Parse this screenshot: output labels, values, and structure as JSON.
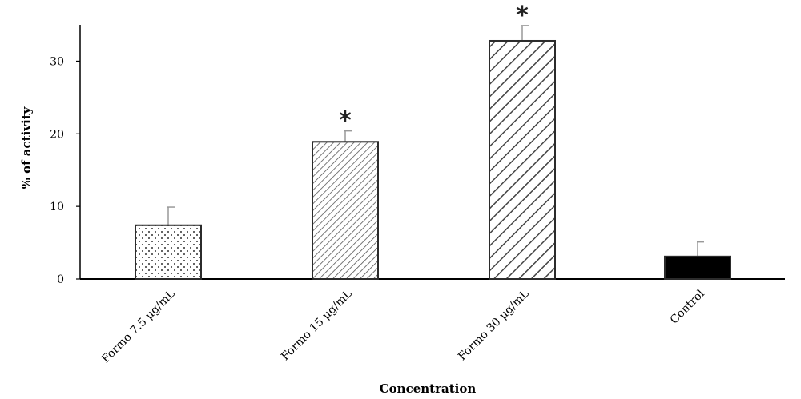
{
  "chart_data": {
    "type": "bar",
    "categories": [
      "Formo 7.5 μg/mL",
      "Formo 15 μg/mL",
      "Formo 30 μg/mL",
      "Control"
    ],
    "values": [
      7.4,
      18.9,
      32.8,
      3.1
    ],
    "errors": [
      2.5,
      1.5,
      2.1,
      2.0
    ],
    "significance": [
      "",
      "*",
      "*",
      ""
    ],
    "patterns": [
      "dots",
      "fine-diagonal",
      "wide-diagonal",
      "solid"
    ],
    "xlabel": "Concentration",
    "ylabel": "% of activity",
    "yticks": [
      0,
      10,
      20,
      30
    ],
    "ylim": [
      0,
      35
    ],
    "grid": false,
    "colors": {
      "bar_edge": "#2b2b2b",
      "hatch": "#555555",
      "solid": "#000000",
      "error_bar": "#999999",
      "axis": "#000000"
    }
  }
}
